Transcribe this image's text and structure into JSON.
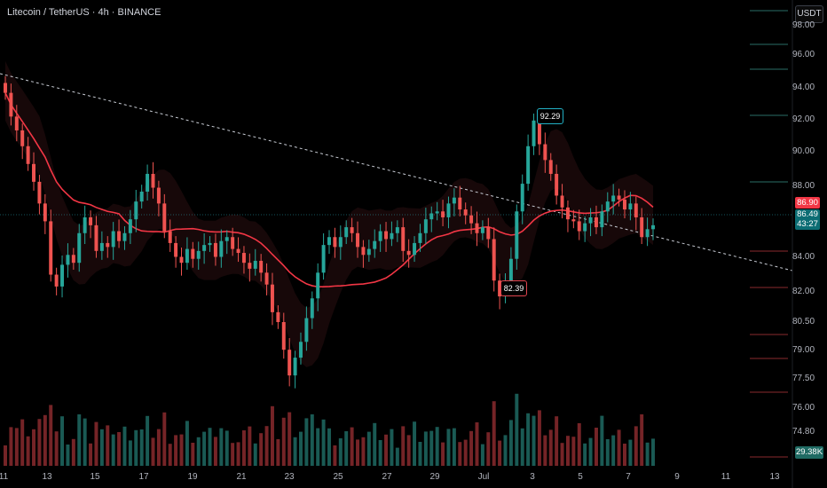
{
  "header": {
    "title": "Litecoin / TetherUS · 4h · BINANCE",
    "currency": "USDT"
  },
  "price_labels": {
    "last_high": "92.29",
    "last_low": "82.39",
    "red_price": "86.90",
    "current_price": "86.49",
    "countdown": "43:27",
    "volume": "29.38K"
  },
  "y_axis": [
    "98.00",
    "96.00",
    "94.00",
    "92.00",
    "90.00",
    "88.00",
    "84.00",
    "82.00",
    "80.50",
    "79.00",
    "77.50",
    "76.00",
    "74.80"
  ],
  "x_axis": [
    "11",
    "13",
    "15",
    "17",
    "19",
    "21",
    "23",
    "25",
    "27",
    "29",
    "Jul",
    "3",
    "5",
    "7",
    "9",
    "11",
    "13"
  ],
  "colors": {
    "up": "#26a69a",
    "down": "#ef5350",
    "ma": "#f23645",
    "bg": "#000000"
  },
  "chart_data": {
    "type": "candlestick",
    "symbol": "LTCUSDT",
    "ylim": [
      74.8,
      98
    ],
    "highlights": {
      "high": 92.29,
      "low": 82.39,
      "last": 86.49,
      "ma": 86.9
    },
    "closes": [
      93.2,
      92.0,
      91.3,
      90.5,
      89.6,
      88.7,
      87.6,
      86.7,
      84.0,
      83.4,
      84.5,
      85.0,
      84.6,
      86.1,
      86.9,
      86.5,
      85.2,
      85.6,
      85.4,
      86.2,
      85.7,
      86.1,
      86.8,
      87.7,
      88.2,
      89.1,
      88.4,
      87.6,
      86.2,
      85.6,
      84.9,
      84.6,
      85.3,
      84.8,
      85.2,
      85.5,
      85.6,
      84.9,
      85.7,
      85.9,
      85.3,
      85.1,
      84.6,
      84.3,
      84.7,
      84.1,
      83.5,
      82.1,
      81.6,
      80.2,
      78.9,
      79.8,
      80.6,
      81.8,
      82.8,
      84.1,
      85.5,
      85.9,
      85.4,
      85.9,
      86.4,
      86.1,
      85.4,
      85.0,
      85.3,
      85.7,
      86.2,
      85.8,
      86.1,
      86.4,
      85.2,
      85.0,
      85.6,
      86.1,
      86.8,
      87.1,
      87.2,
      86.9,
      87.6,
      87.9,
      87.3,
      87.0,
      86.6,
      86.1,
      86.4,
      85.8,
      83.7,
      82.9,
      83.6,
      84.8,
      87.2,
      88.6,
      90.5,
      91.8,
      90.6,
      89.8,
      89.1,
      88.0,
      87.4,
      86.8,
      86.7,
      86.2,
      86.6,
      86.9,
      86.4,
      87.2,
      87.7,
      88.0,
      87.8,
      87.3,
      87.6,
      86.9,
      85.9,
      86.3,
      86.5
    ],
    "volume_scale": "K",
    "volume_last": 29.38
  }
}
